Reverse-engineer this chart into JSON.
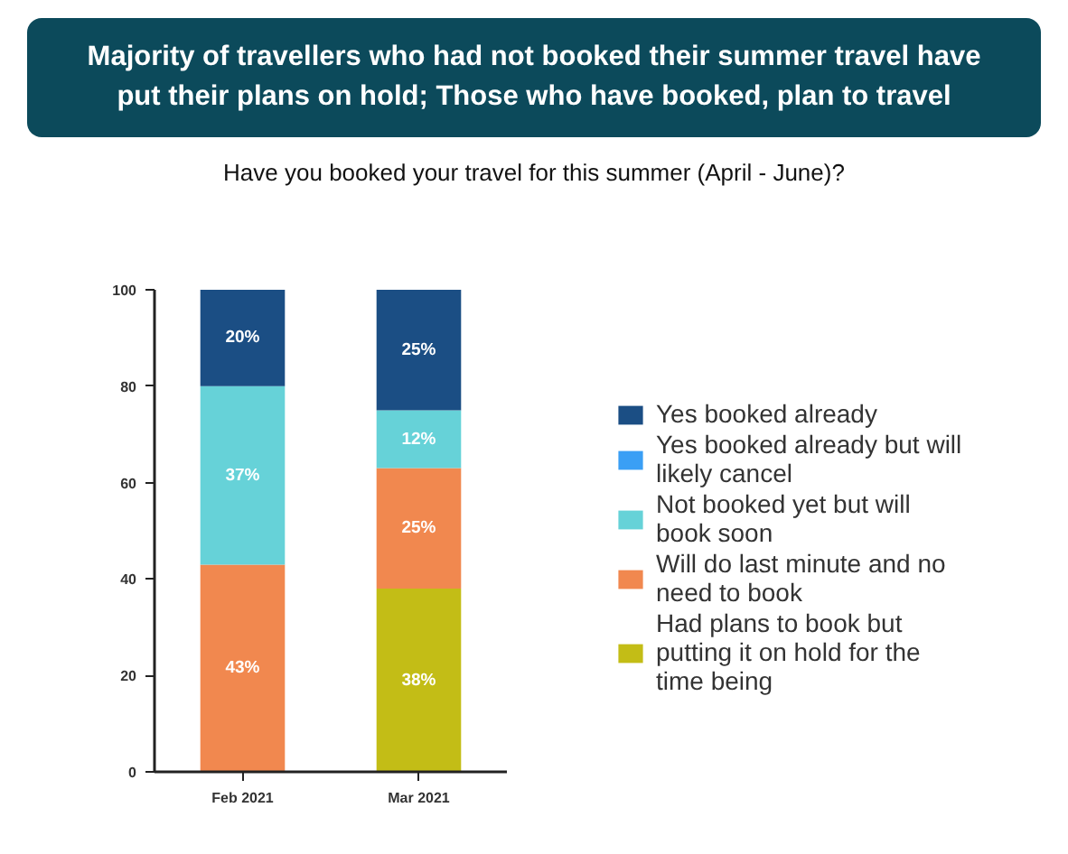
{
  "chart_data": {
    "type": "bar",
    "title": "Majority of travellers who had not booked their summer travel have put their plans on hold; Those who have booked, plan to travel",
    "subtitle": "Have you booked your travel for this summer (April - June)?",
    "categories": [
      "Feb 2021",
      "Mar 2021"
    ],
    "stacked": true,
    "ylim": [
      0,
      100
    ],
    "yticks": [
      0,
      20,
      40,
      60,
      80,
      100
    ],
    "legend": "right",
    "series": [
      {
        "name": "Had plans to book but putting it on hold for the time being",
        "color": "#c3bd16",
        "values": [
          null,
          38
        ],
        "value_labels": [
          null,
          "38%"
        ]
      },
      {
        "name": "Will do last minute and no need to book",
        "color": "#f1884f",
        "values": [
          43,
          25
        ],
        "value_labels": [
          "43%",
          "25%"
        ]
      },
      {
        "name": "Not booked yet but will book soon",
        "color": "#66d2d8",
        "values": [
          37,
          12
        ],
        "value_labels": [
          "37%",
          "12%"
        ]
      },
      {
        "name": "Yes booked already but will likely cancel",
        "color": "#3a9ff5",
        "values": [
          null,
          null
        ]
      },
      {
        "name": "Yes booked already",
        "color": "#1b4e84",
        "values": [
          20,
          25
        ],
        "value_labels": [
          "20%",
          "25%"
        ]
      }
    ]
  }
}
